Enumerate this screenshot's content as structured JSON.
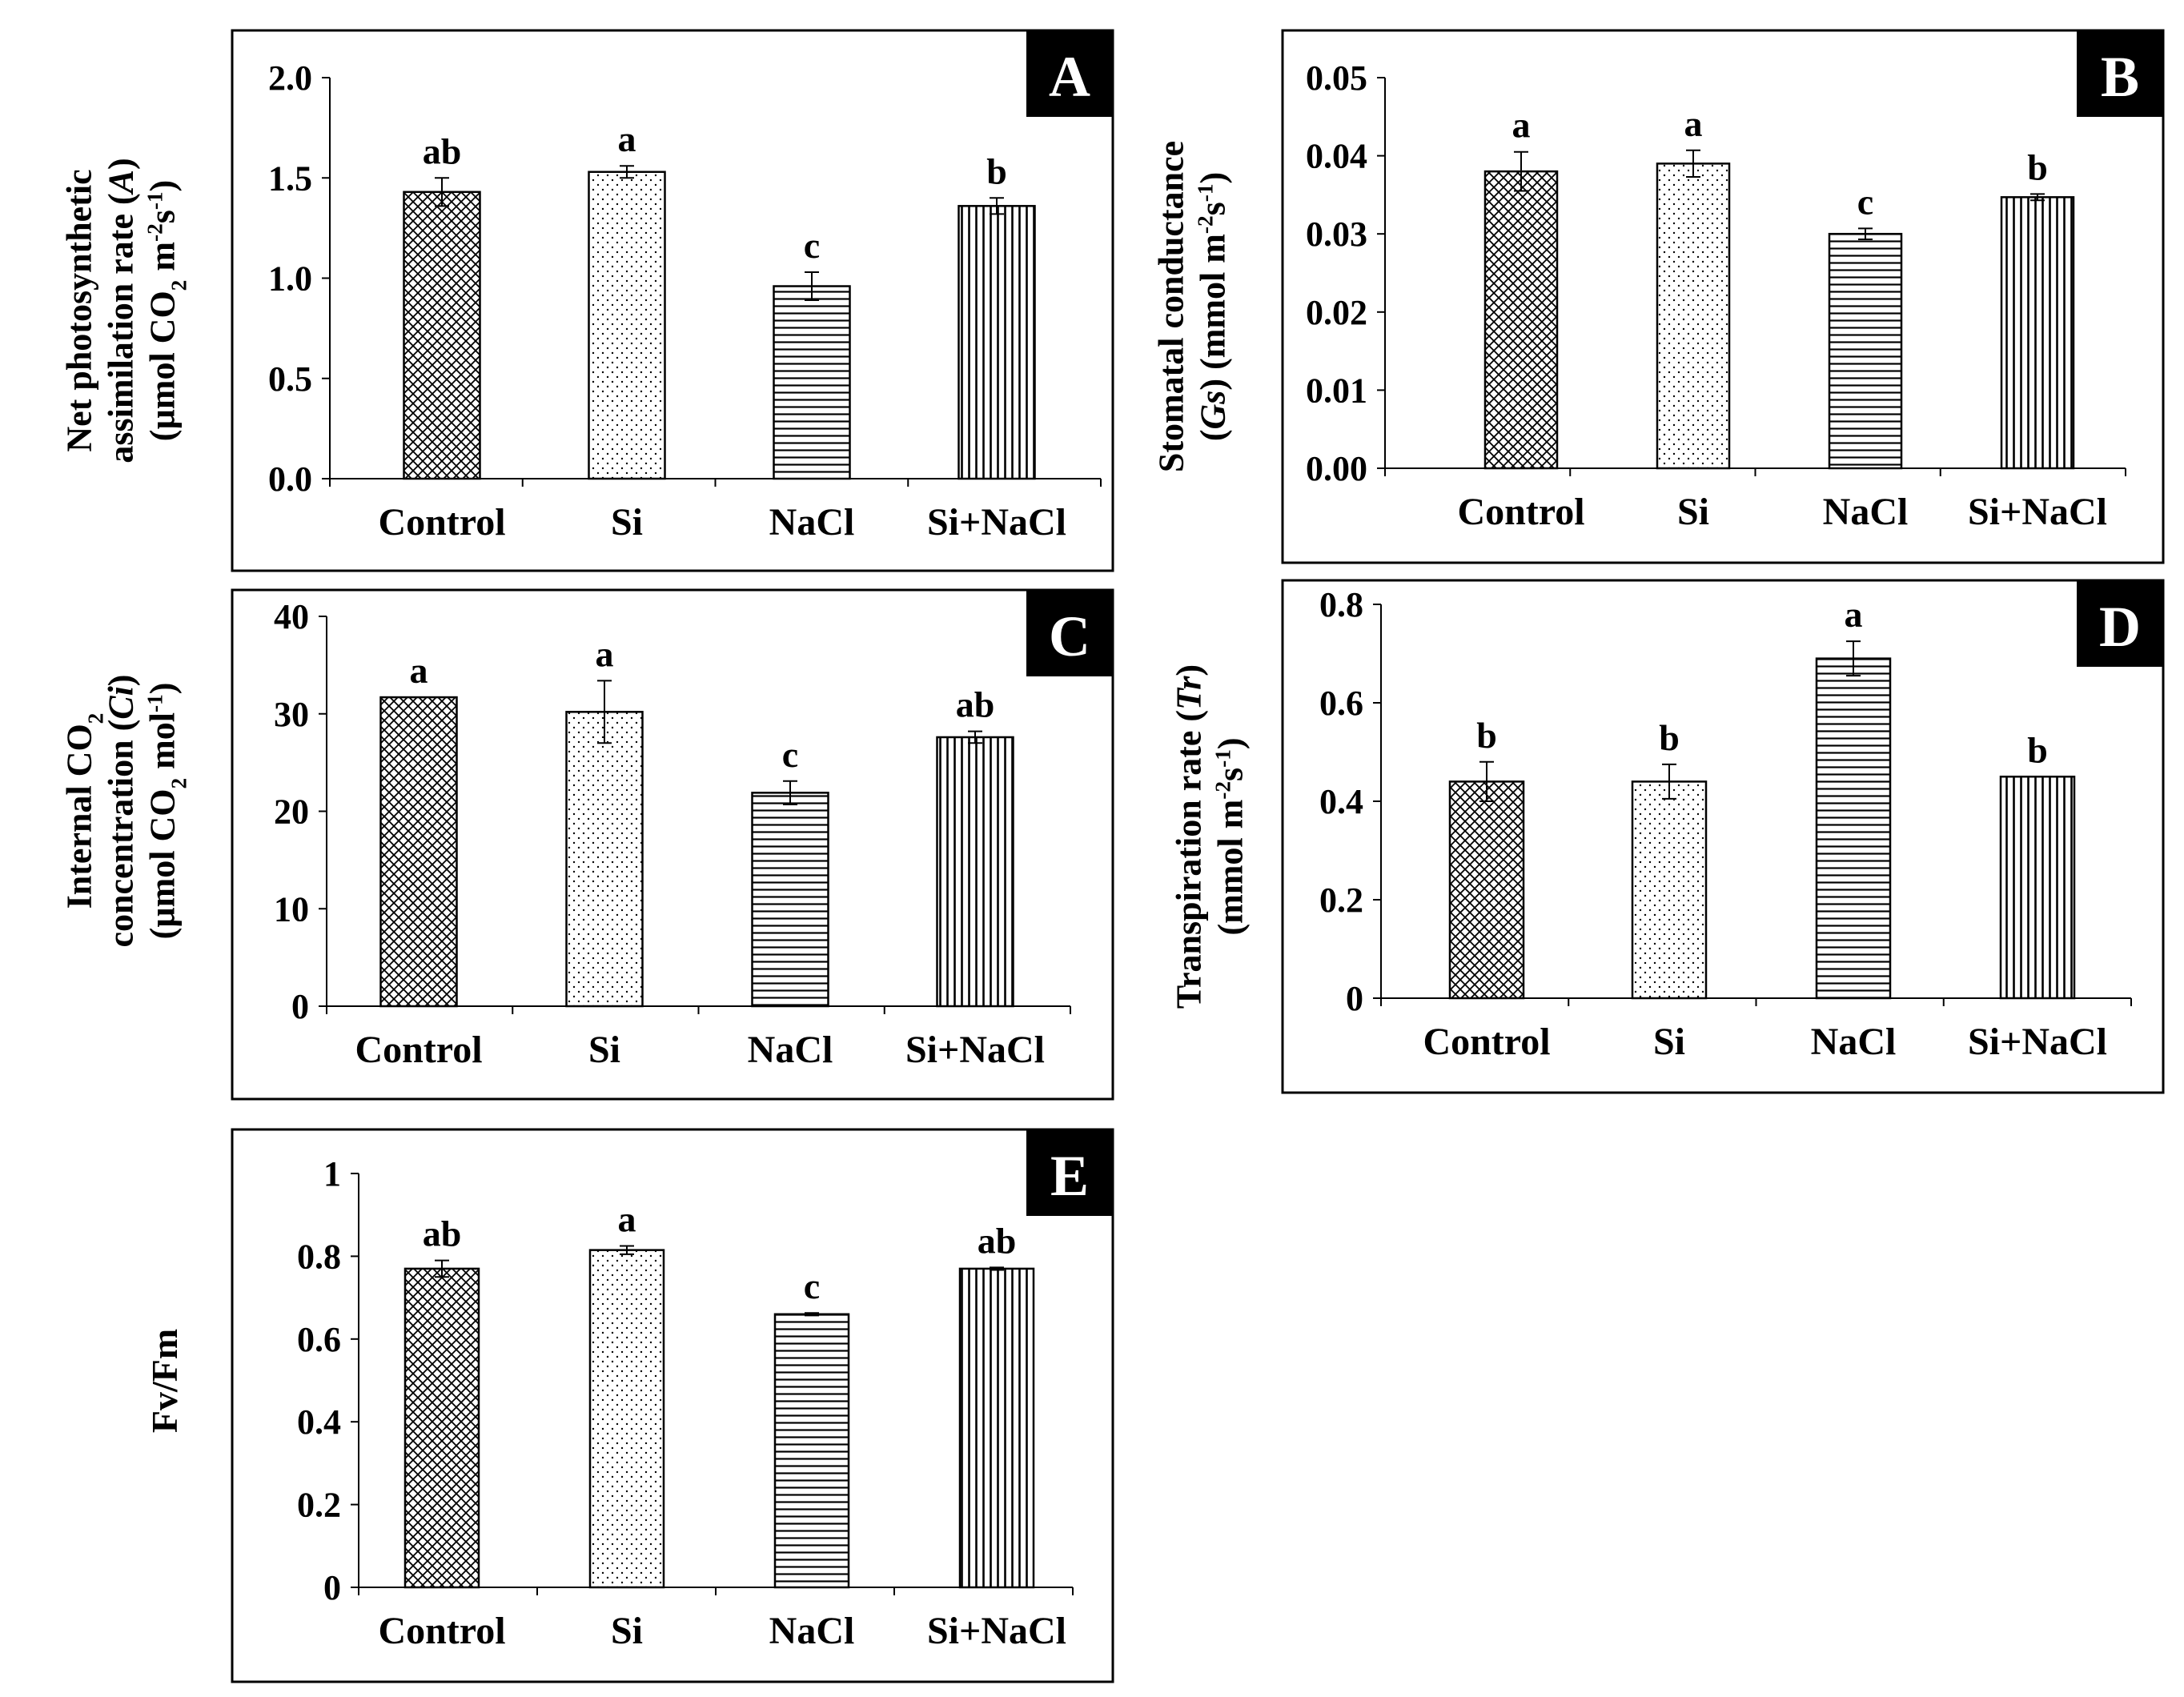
{
  "figure": {
    "background": "#ffffff",
    "ink": "#000000"
  },
  "patterns": {
    "Control": "crosshatch",
    "Si": "dots",
    "NaCl": "horizontal-lines",
    "Si+NaCl": "vertical-lines"
  },
  "chart_data": [
    {
      "panel": "A",
      "type": "bar",
      "categories": [
        "Control",
        "Si",
        "NaCl",
        "Si+NaCl"
      ],
      "values": [
        1.43,
        1.53,
        0.96,
        1.36
      ],
      "errors": [
        0.07,
        0.03,
        0.07,
        0.04
      ],
      "letters": [
        "ab",
        "a",
        "c",
        "b"
      ],
      "ylabel_lines": [
        [
          {
            "t": "Net photosynthetic"
          }
        ],
        [
          {
            "t": "assimilation rate ("
          },
          {
            "t": "A",
            "i": true
          },
          {
            "t": ")"
          }
        ],
        [
          {
            "t": "(µmol CO"
          },
          {
            "t": "2",
            "sub": true
          },
          {
            "t": " m"
          },
          {
            "t": "-2",
            "sup": true
          },
          {
            "t": "s"
          },
          {
            "t": "-1",
            "sup": true
          },
          {
            "t": ")"
          }
        ]
      ],
      "ylim": [
        0,
        2.0
      ],
      "ticks": [
        "0.0",
        "0.5",
        "1.0",
        "1.5",
        "2.0"
      ],
      "grid": false
    },
    {
      "panel": "B",
      "type": "bar",
      "categories": [
        "Control",
        "Si",
        "NaCl",
        "Si+NaCl"
      ],
      "values": [
        0.038,
        0.039,
        0.03,
        0.0347
      ],
      "errors": [
        0.0025,
        0.0017,
        0.0007,
        0.0004
      ],
      "letters": [
        "a",
        "a",
        "c",
        "b"
      ],
      "ylabel_lines": [
        [
          {
            "t": "Stomatal conductance"
          }
        ],
        [
          {
            "t": "("
          },
          {
            "t": "Gs",
            "i": true
          },
          {
            "t": ") (mmol  m"
          },
          {
            "t": "-2",
            "sup": true
          },
          {
            "t": "s"
          },
          {
            "t": "-1",
            "sup": true
          },
          {
            "t": ")"
          }
        ]
      ],
      "ylim": [
        0,
        0.05
      ],
      "ticks": [
        "0.00",
        "0.01",
        "0.02",
        "0.03",
        "0.04",
        "0.05"
      ],
      "grid": false
    },
    {
      "panel": "C",
      "type": "bar",
      "categories": [
        "Control",
        "Si",
        "NaCl",
        "Si+NaCl"
      ],
      "values": [
        31.7,
        30.2,
        21.9,
        27.6
      ],
      "errors": [
        0,
        3.2,
        1.2,
        0.6
      ],
      "letters": [
        "a",
        "a",
        "c",
        "ab"
      ],
      "ylabel_lines": [
        [
          {
            "t": "Internal CO"
          },
          {
            "t": "2",
            "sub": true
          }
        ],
        [
          {
            "t": "concentration ("
          },
          {
            "t": "Ci",
            "i": true
          },
          {
            "t": ")"
          }
        ],
        [
          {
            "t": "(µmol CO"
          },
          {
            "t": "2",
            "sub": true
          },
          {
            "t": " mol"
          },
          {
            "t": "-1",
            "sup": true
          },
          {
            "t": ")"
          }
        ]
      ],
      "ylim": [
        0,
        40
      ],
      "ticks": [
        "0",
        "10",
        "20",
        "30",
        "40"
      ],
      "grid": false
    },
    {
      "panel": "D",
      "type": "bar",
      "categories": [
        "Control",
        "Si",
        "NaCl",
        "Si+NaCl"
      ],
      "values": [
        0.44,
        0.44,
        0.69,
        0.45
      ],
      "errors": [
        0.04,
        0.035,
        0.035,
        0
      ],
      "letters": [
        "b",
        "b",
        "a",
        "b"
      ],
      "ylabel_lines": [
        [
          {
            "t": "Transpiration rate ("
          },
          {
            "t": "Tr",
            "i": true
          },
          {
            "t": ")"
          }
        ],
        [
          {
            "t": "(mmol  m"
          },
          {
            "t": "-2",
            "sup": true
          },
          {
            "t": "s"
          },
          {
            "t": "-1",
            "sup": true
          },
          {
            "t": ")"
          }
        ]
      ],
      "ylim": [
        0,
        0.8
      ],
      "ticks": [
        "0",
        "0.2",
        "0.4",
        "0.6",
        "0.8"
      ],
      "grid": false
    },
    {
      "panel": "E",
      "type": "bar",
      "categories": [
        "Control",
        "Si",
        "NaCl",
        "Si+NaCl"
      ],
      "values": [
        0.77,
        0.815,
        0.66,
        0.77
      ],
      "errors": [
        0.02,
        0.01,
        0.003,
        0.003
      ],
      "letters": [
        "ab",
        "a",
        "c",
        "ab"
      ],
      "ylabel_lines": [
        [
          {
            "t": "Fv/Fm"
          }
        ]
      ],
      "ylim": [
        0,
        1
      ],
      "ticks": [
        "0",
        "0.2",
        "0.4",
        "0.6",
        "0.8",
        "1"
      ],
      "grid": false
    }
  ]
}
